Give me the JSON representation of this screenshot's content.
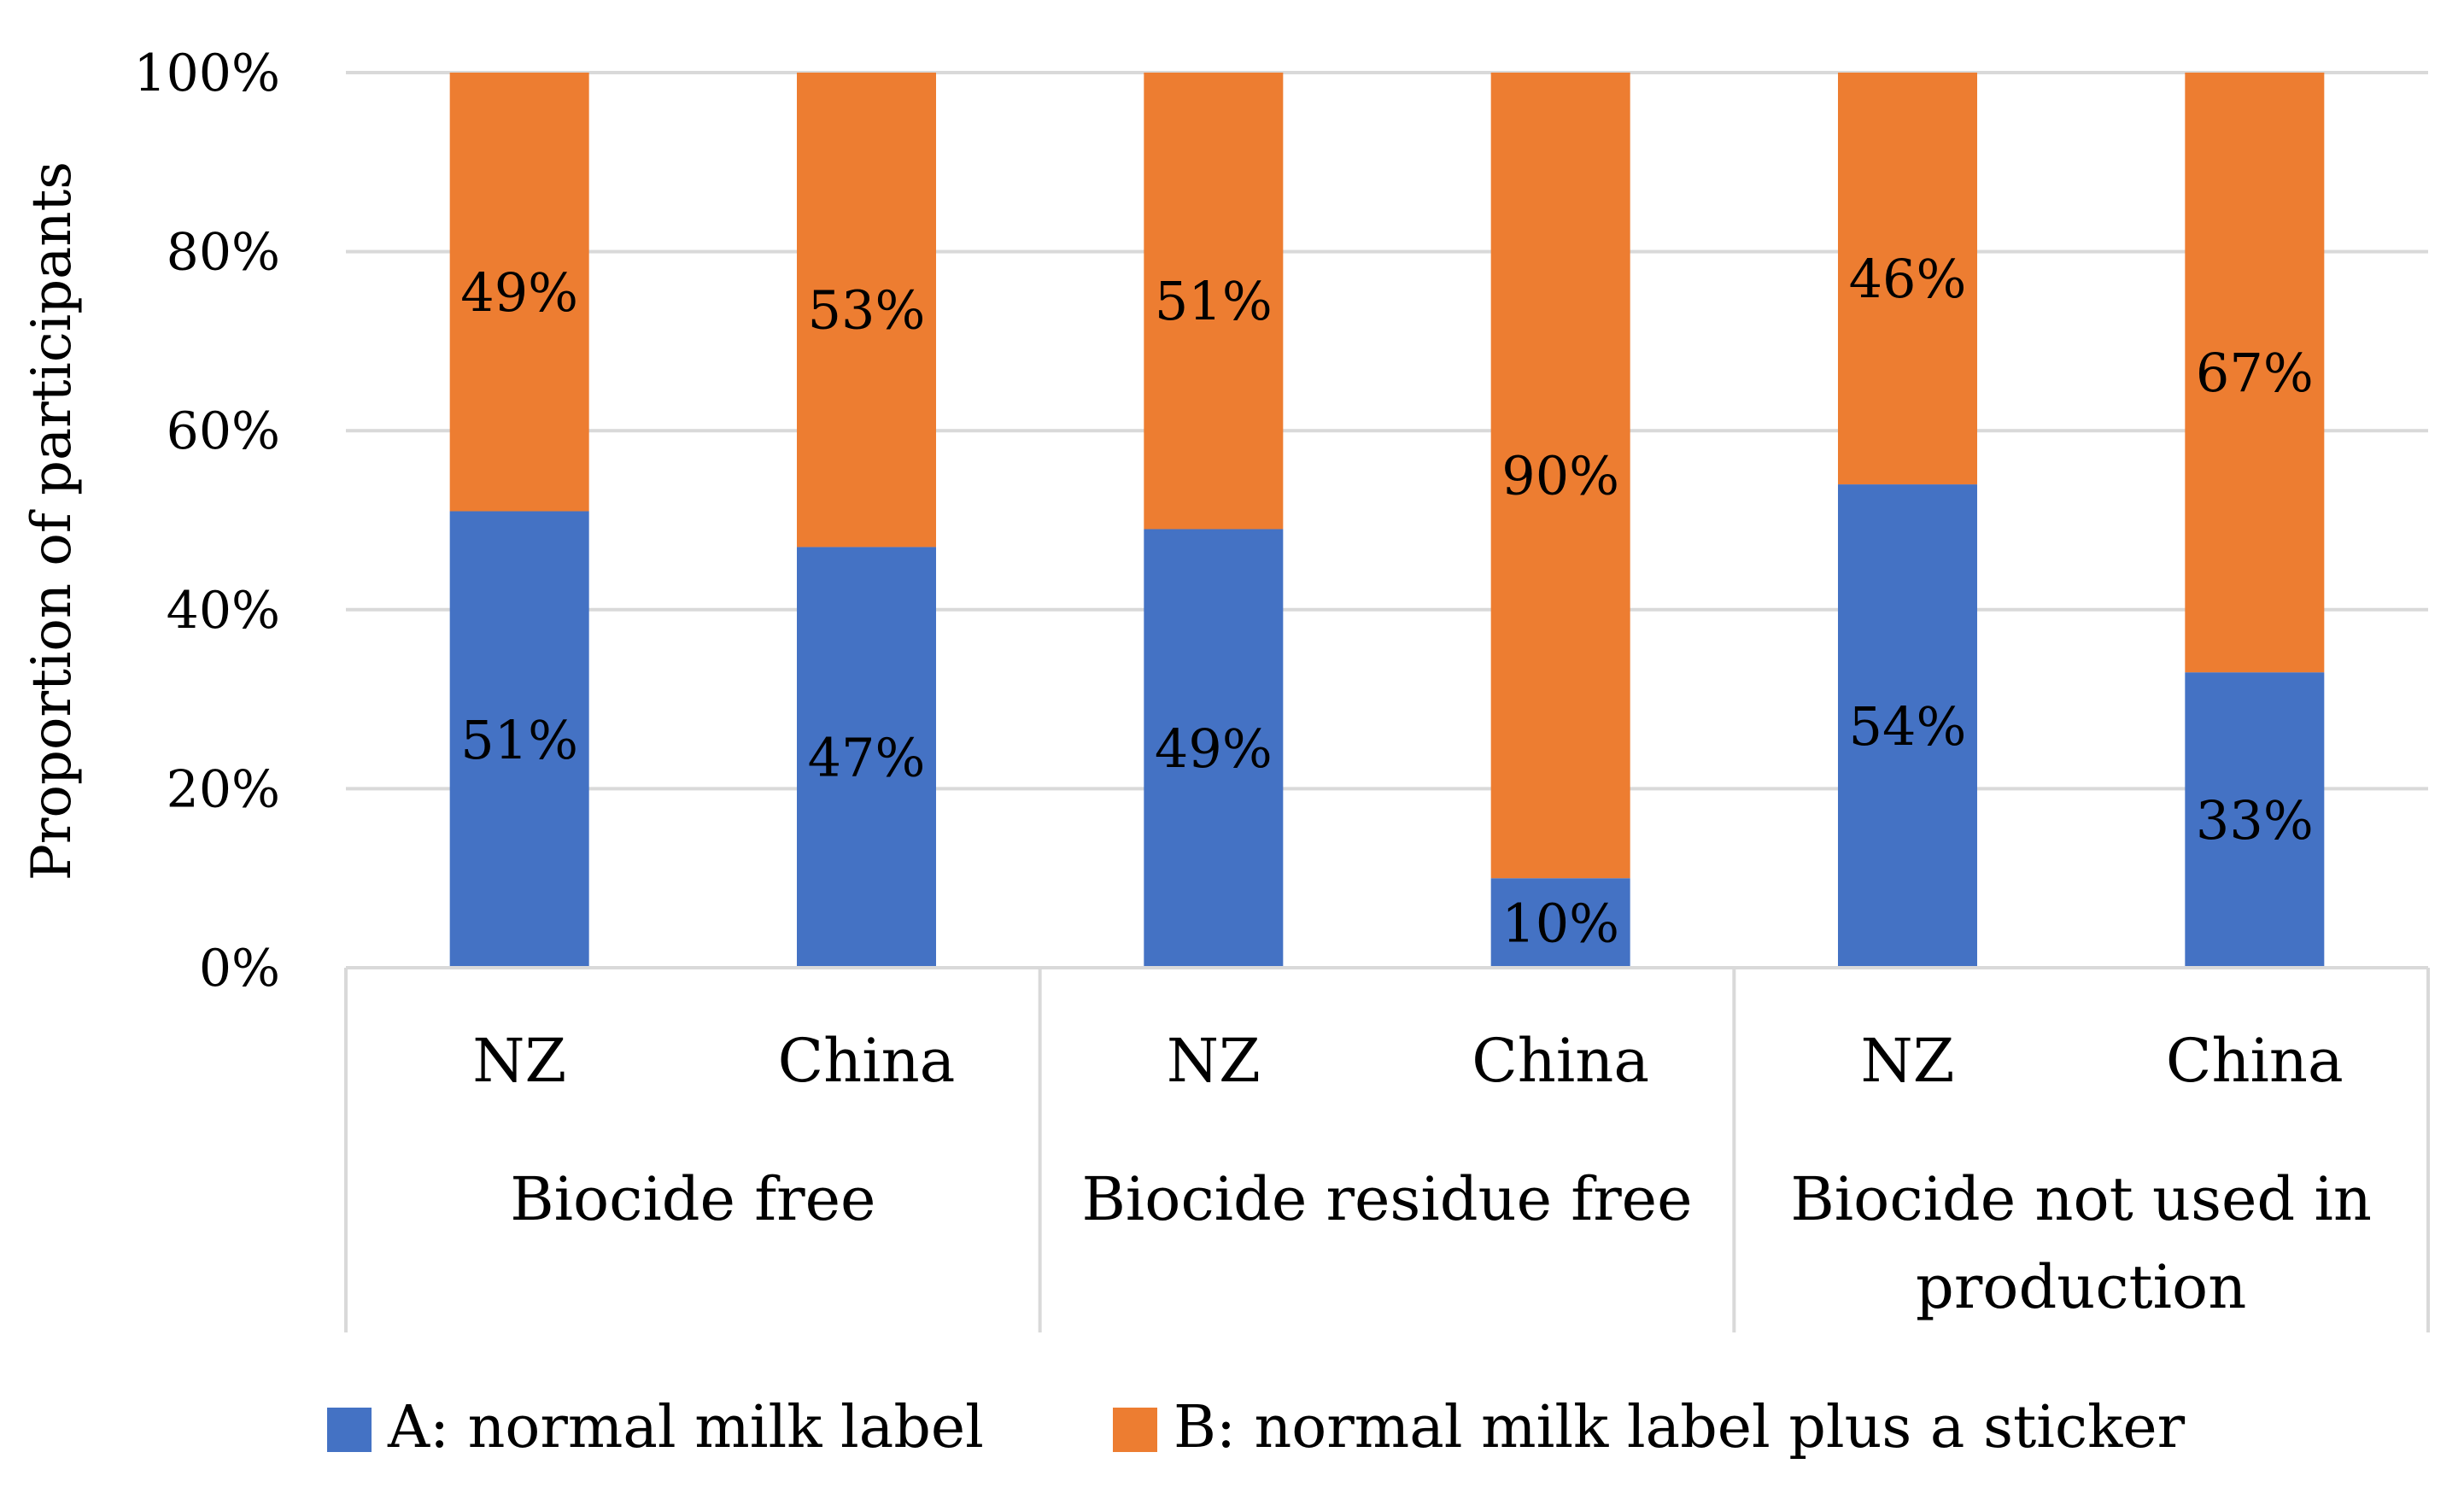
{
  "chart_data": {
    "type": "bar",
    "stacked": true,
    "ylabel": "Proportion of participants",
    "ylim": [
      0,
      100
    ],
    "yticks": [
      "0%",
      "20%",
      "40%",
      "60%",
      "80%",
      "100%"
    ],
    "groups": [
      {
        "lines": [
          "Biocide free"
        ]
      },
      {
        "lines": [
          "Biocide residue free"
        ]
      },
      {
        "lines": [
          "Biocide not used in",
          "production"
        ]
      }
    ],
    "categories": [
      "NZ",
      "China",
      "NZ",
      "China",
      "NZ",
      "China"
    ],
    "series": [
      {
        "name": "A: normal milk label",
        "color": "#4472C4",
        "values": [
          51,
          47,
          49,
          10,
          54,
          33
        ],
        "labels": [
          "51%",
          "47%",
          "49%",
          "10%",
          "54%",
          "33%"
        ]
      },
      {
        "name": "B: normal milk label plus a sticker",
        "color": "#ED7D31",
        "values": [
          49,
          53,
          51,
          90,
          46,
          67
        ],
        "labels": [
          "49%",
          "53%",
          "51%",
          "90%",
          "46%",
          "67%"
        ]
      }
    ],
    "legend_position": "bottom",
    "grid": true
  }
}
